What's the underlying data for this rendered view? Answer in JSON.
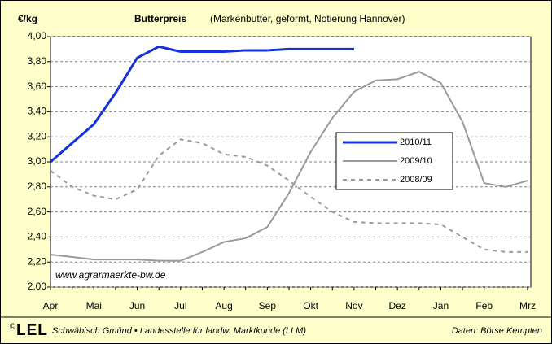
{
  "chart_data": {
    "type": "line",
    "title": "Butterpreis",
    "subtitle": "(Markenbutter, geformt, Notierung Hannover)",
    "y_label": "€/kg",
    "annotation": "www.agrarmaerkte-bw.de",
    "footer_left": "Schwäbisch Gmünd • Landesstelle für landw. Marktkunde (LLM)",
    "footer_right": "Daten: Börse Kempten",
    "logo": "LEL",
    "logo_mark": "©",
    "categories": [
      "Apr",
      null,
      "Mai",
      null,
      "Jun",
      null,
      "Jul",
      null,
      "Aug",
      null,
      "Sep",
      null,
      "Okt",
      null,
      "Nov",
      null,
      "Dez",
      null,
      "Jan",
      null,
      "Feb",
      null,
      "Mrz"
    ],
    "series": [
      {
        "name": "2010/11",
        "color": "#1432dc",
        "style": "solid",
        "width": 3,
        "values": [
          3.0,
          3.15,
          3.3,
          3.55,
          3.83,
          3.92,
          3.88,
          3.88,
          3.88,
          3.89,
          3.89,
          3.9,
          3.9,
          3.9,
          3.9,
          null,
          null,
          null,
          null,
          null,
          null,
          null,
          null
        ]
      },
      {
        "name": "2009/10",
        "color": "#9a9a9a",
        "style": "solid",
        "width": 2,
        "values": [
          2.26,
          2.24,
          2.22,
          2.22,
          2.22,
          2.21,
          2.21,
          2.28,
          2.36,
          2.39,
          2.48,
          2.75,
          3.08,
          3.35,
          3.56,
          3.65,
          3.66,
          3.72,
          3.63,
          3.32,
          2.83,
          2.8,
          2.85
        ]
      },
      {
        "name": "2008/09",
        "color": "#9a9a9a",
        "style": "dashed",
        "width": 2,
        "values": [
          2.93,
          2.8,
          2.73,
          2.7,
          2.78,
          3.05,
          3.18,
          3.15,
          3.06,
          3.04,
          2.97,
          2.85,
          2.72,
          2.6,
          2.52,
          2.51,
          2.51,
          2.51,
          2.5,
          2.4,
          2.3,
          2.28,
          2.28
        ]
      }
    ],
    "ylim": [
      2.0,
      4.0
    ],
    "yticks": [
      {
        "value": 2.0,
        "label": "2,00"
      },
      {
        "value": 2.2,
        "label": "2,20"
      },
      {
        "value": 2.4,
        "label": "2,40"
      },
      {
        "value": 2.6,
        "label": "2,60"
      },
      {
        "value": 2.8,
        "label": "2,80"
      },
      {
        "value": 3.0,
        "label": "3,00"
      },
      {
        "value": 3.2,
        "label": "3,20"
      },
      {
        "value": 3.4,
        "label": "3,40"
      },
      {
        "value": 3.6,
        "label": "3,60"
      },
      {
        "value": 3.8,
        "label": "3,80"
      },
      {
        "value": 4.0,
        "label": "4,00"
      }
    ],
    "grid": true,
    "legend": "center-right",
    "background": "#ffffcc"
  }
}
